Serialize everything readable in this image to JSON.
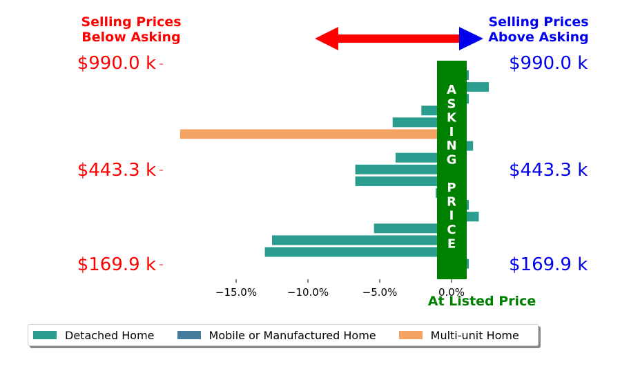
{
  "header": {
    "left_line1": "Selling Prices",
    "left_line2": "Below Asking",
    "right_line1": "Selling Prices",
    "right_line2": "Above Asking",
    "center_bar_label": "ASKING PRICE",
    "listed_label": "At Listed Price"
  },
  "price_labels": {
    "top": "$990.0 k",
    "middle": "$443.3 k",
    "bottom": "$169.9 k"
  },
  "colors": {
    "detached": "#2a9d8f",
    "mobile": "#457b9d",
    "multiunit": "#f4a261",
    "asking_bar": "#008000",
    "below": "#ff0000",
    "above": "#0000ee"
  },
  "chart_data": {
    "type": "bar",
    "orientation": "horizontal",
    "xlabel": "",
    "ylabel": "",
    "x_ticks": [
      -15.0,
      -10.0,
      -5.0,
      0.0
    ],
    "x_tick_labels": [
      "−15.0%",
      "−10.0%",
      "−5.0%",
      "0.0%"
    ],
    "xlim": [
      -20.0,
      7.0
    ],
    "legend": [
      "Detached Home",
      "Mobile or Manufactured Home",
      "Multi-unit Home"
    ],
    "legend_position": "bottom",
    "bars": [
      {
        "value": 1.2,
        "type": "Detached Home"
      },
      {
        "value": 2.6,
        "type": "Detached Home"
      },
      {
        "value": 1.2,
        "type": "Detached Home"
      },
      {
        "value": -2.1,
        "type": "Detached Home"
      },
      {
        "value": -4.1,
        "type": "Detached Home"
      },
      {
        "value": -18.9,
        "type": "Multi-unit Home"
      },
      {
        "value": 1.5,
        "type": "Detached Home"
      },
      {
        "value": -3.9,
        "type": "Detached Home"
      },
      {
        "value": -6.7,
        "type": "Detached Home"
      },
      {
        "value": -6.7,
        "type": "Detached Home"
      },
      {
        "value": -1.1,
        "type": "Detached Home"
      },
      {
        "value": 1.2,
        "type": "Detached Home"
      },
      {
        "value": 1.9,
        "type": "Detached Home"
      },
      {
        "value": -5.4,
        "type": "Detached Home"
      },
      {
        "value": -12.5,
        "type": "Detached Home"
      },
      {
        "value": -13.0,
        "type": "Detached Home"
      },
      {
        "value": 1.2,
        "type": "Detached Home"
      }
    ]
  }
}
